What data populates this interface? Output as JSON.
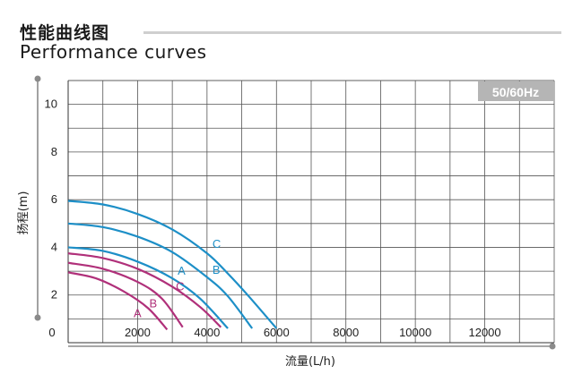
{
  "header": {
    "title_cn": "性能曲线图",
    "title_en": "Performance curves"
  },
  "chart_data": {
    "type": "line",
    "xlabel": "流量(L/h)",
    "ylabel": "扬程(m)",
    "xlim": [
      0,
      14000
    ],
    "ylim": [
      0,
      11
    ],
    "x_ticks": [
      0,
      2000,
      4000,
      6000,
      8000,
      10000,
      12000
    ],
    "y_ticks": [
      2,
      4,
      6,
      8,
      10
    ],
    "grid": true,
    "badge": "50/60Hz",
    "colors": {
      "blue": "#1d8fc7",
      "purple": "#b0307a",
      "grid": "#555555",
      "badge_bg": "#b5b5b5"
    },
    "series": [
      {
        "name": "C",
        "group": "blue",
        "x": [
          0,
          1000,
          2000,
          3000,
          4000,
          4600,
          5200,
          6000
        ],
        "y": [
          5.95,
          5.8,
          5.4,
          4.75,
          3.75,
          2.9,
          1.95,
          0.6
        ]
      },
      {
        "name": "B",
        "group": "blue",
        "x": [
          0,
          1000,
          2000,
          3000,
          4000,
          4600,
          5300
        ],
        "y": [
          5.0,
          4.85,
          4.45,
          3.8,
          2.75,
          1.95,
          0.6
        ]
      },
      {
        "name": "A",
        "group": "blue",
        "x": [
          0,
          1000,
          2000,
          3000,
          3800,
          4600
        ],
        "y": [
          4.0,
          3.85,
          3.4,
          2.7,
          1.85,
          0.6
        ]
      },
      {
        "name": "C",
        "group": "purple",
        "x": [
          0,
          1000,
          2000,
          3000,
          3800,
          4400
        ],
        "y": [
          3.75,
          3.55,
          3.1,
          2.35,
          1.5,
          0.65
        ]
      },
      {
        "name": "B",
        "group": "purple",
        "x": [
          0,
          1000,
          2000,
          2700,
          3300
        ],
        "y": [
          3.35,
          3.1,
          2.55,
          1.85,
          0.65
        ]
      },
      {
        "name": "A",
        "group": "purple",
        "x": [
          0,
          800,
          1600,
          2300,
          2850
        ],
        "y": [
          2.95,
          2.7,
          2.15,
          1.45,
          0.55
        ]
      }
    ]
  }
}
